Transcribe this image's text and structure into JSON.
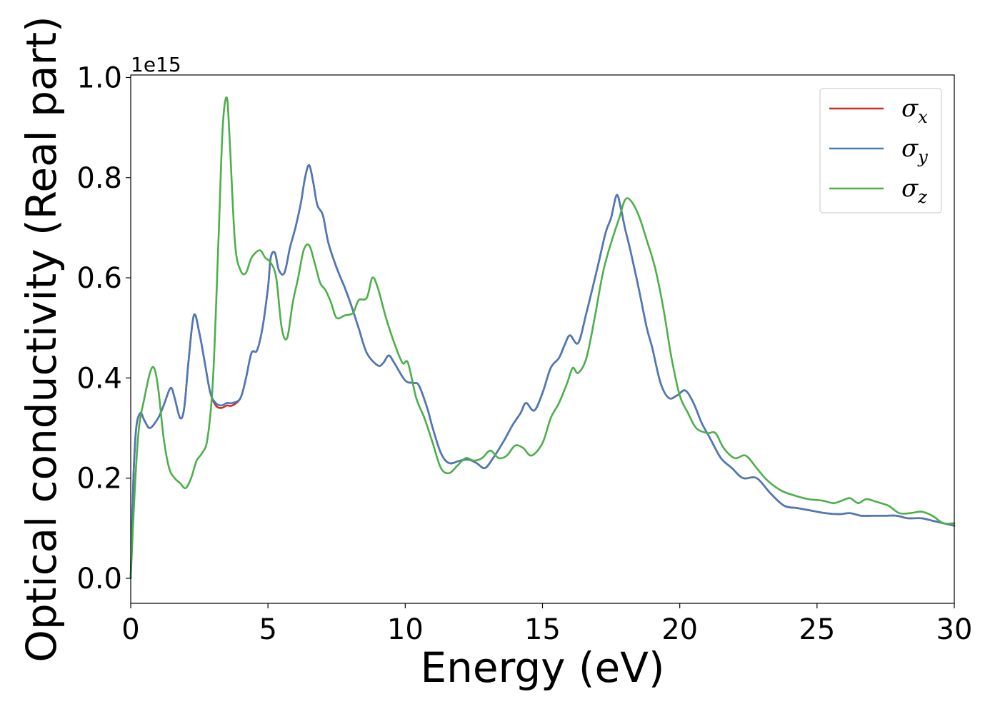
{
  "chart_data": {
    "type": "line",
    "xlabel": "Energy (eV)",
    "ylabel": "Optical conductivity (Real part)",
    "y_offset_label": "1e15",
    "xlim": [
      0,
      30
    ],
    "ylim": [
      -0.05,
      1.005
    ],
    "xticks": [
      0,
      5,
      10,
      15,
      20,
      25,
      30
    ],
    "xtick_labels": [
      "0",
      "5",
      "10",
      "15",
      "20",
      "25",
      "30"
    ],
    "yticks": [
      0.0,
      0.2,
      0.4,
      0.6,
      0.8,
      1.0
    ],
    "ytick_labels": [
      "0.0",
      "0.2",
      "0.4",
      "0.6",
      "0.8",
      "1.0"
    ],
    "grid": false,
    "legend_position": "top-right",
    "series": [
      {
        "name": "σx",
        "legend_base": "σ",
        "legend_sub": "x",
        "color": "#d62728",
        "x": [
          0,
          0.1,
          0.2,
          0.35,
          0.5,
          0.7,
          1.0,
          1.2,
          1.45,
          1.6,
          1.8,
          1.95,
          2.1,
          2.3,
          2.5,
          2.7,
          2.9,
          3.1,
          3.3,
          3.5,
          3.7,
          4.0,
          4.2,
          4.4,
          4.6,
          4.8,
          5.0,
          5.1,
          5.25,
          5.4,
          5.6,
          5.8,
          6.0,
          6.2,
          6.35,
          6.5,
          6.65,
          6.8,
          7.0,
          7.2,
          7.5,
          7.8,
          8.0,
          8.3,
          8.6,
          9.0,
          9.2,
          9.4,
          9.6,
          10.0,
          10.3,
          10.5,
          10.8,
          11.0,
          11.3,
          11.6,
          12.0,
          12.3,
          12.6,
          12.9,
          13.2,
          13.6,
          13.9,
          14.2,
          14.4,
          14.7,
          15.0,
          15.3,
          15.6,
          15.8,
          16.0,
          16.3,
          16.6,
          17.0,
          17.3,
          17.5,
          17.7,
          17.85,
          18.0,
          18.2,
          18.5,
          18.8,
          19.0,
          19.3,
          19.6,
          19.9,
          20.2,
          20.5,
          20.8,
          21.1,
          21.5,
          21.9,
          22.3,
          22.8,
          23.3,
          23.8,
          24.3,
          24.8,
          25.3,
          25.8,
          26.2,
          26.6,
          27.0,
          27.5,
          27.9,
          28.3,
          28.8,
          29.2,
          29.6,
          30.0
        ],
        "y": [
          0.0,
          0.2,
          0.3,
          0.33,
          0.315,
          0.3,
          0.32,
          0.345,
          0.38,
          0.36,
          0.32,
          0.34,
          0.43,
          0.525,
          0.49,
          0.43,
          0.37,
          0.345,
          0.34,
          0.345,
          0.345,
          0.36,
          0.4,
          0.45,
          0.455,
          0.5,
          0.58,
          0.64,
          0.65,
          0.615,
          0.61,
          0.66,
          0.7,
          0.75,
          0.8,
          0.825,
          0.79,
          0.745,
          0.725,
          0.67,
          0.62,
          0.58,
          0.55,
          0.5,
          0.45,
          0.425,
          0.43,
          0.445,
          0.43,
          0.395,
          0.39,
          0.385,
          0.34,
          0.3,
          0.25,
          0.23,
          0.235,
          0.237,
          0.23,
          0.22,
          0.24,
          0.275,
          0.305,
          0.33,
          0.35,
          0.335,
          0.37,
          0.42,
          0.44,
          0.465,
          0.485,
          0.47,
          0.53,
          0.62,
          0.69,
          0.72,
          0.765,
          0.74,
          0.7,
          0.655,
          0.58,
          0.5,
          0.46,
          0.39,
          0.36,
          0.365,
          0.375,
          0.35,
          0.31,
          0.28,
          0.24,
          0.22,
          0.2,
          0.2,
          0.17,
          0.145,
          0.14,
          0.135,
          0.13,
          0.128,
          0.13,
          0.125,
          0.125,
          0.125,
          0.125,
          0.12,
          0.12,
          0.115,
          0.11,
          0.105
        ]
      },
      {
        "name": "σy",
        "legend_base": "σ",
        "legend_sub": "y",
        "color": "#4a7ab8",
        "x": [
          0,
          0.1,
          0.2,
          0.35,
          0.5,
          0.7,
          1.0,
          1.2,
          1.45,
          1.6,
          1.8,
          1.95,
          2.1,
          2.3,
          2.5,
          2.7,
          2.9,
          3.1,
          3.3,
          3.5,
          3.7,
          4.0,
          4.2,
          4.4,
          4.6,
          4.8,
          5.0,
          5.1,
          5.25,
          5.4,
          5.6,
          5.8,
          6.0,
          6.2,
          6.35,
          6.5,
          6.65,
          6.8,
          7.0,
          7.2,
          7.5,
          7.8,
          8.0,
          8.3,
          8.6,
          9.0,
          9.2,
          9.4,
          9.6,
          10.0,
          10.3,
          10.5,
          10.8,
          11.0,
          11.3,
          11.6,
          12.0,
          12.3,
          12.6,
          12.9,
          13.2,
          13.6,
          13.9,
          14.2,
          14.4,
          14.7,
          15.0,
          15.3,
          15.6,
          15.8,
          16.0,
          16.3,
          16.6,
          17.0,
          17.3,
          17.5,
          17.7,
          17.85,
          18.0,
          18.2,
          18.5,
          18.8,
          19.0,
          19.3,
          19.6,
          19.9,
          20.2,
          20.5,
          20.8,
          21.1,
          21.5,
          21.9,
          22.3,
          22.8,
          23.3,
          23.8,
          24.3,
          24.8,
          25.3,
          25.8,
          26.2,
          26.6,
          27.0,
          27.5,
          27.9,
          28.3,
          28.8,
          29.2,
          29.6,
          30.0
        ],
        "y": [
          0.0,
          0.2,
          0.3,
          0.33,
          0.315,
          0.3,
          0.32,
          0.345,
          0.38,
          0.36,
          0.32,
          0.34,
          0.43,
          0.525,
          0.49,
          0.43,
          0.37,
          0.35,
          0.345,
          0.35,
          0.35,
          0.36,
          0.4,
          0.45,
          0.455,
          0.5,
          0.58,
          0.64,
          0.65,
          0.615,
          0.61,
          0.66,
          0.7,
          0.75,
          0.8,
          0.825,
          0.79,
          0.745,
          0.725,
          0.67,
          0.62,
          0.58,
          0.55,
          0.5,
          0.45,
          0.425,
          0.43,
          0.445,
          0.43,
          0.395,
          0.39,
          0.385,
          0.34,
          0.3,
          0.25,
          0.23,
          0.235,
          0.237,
          0.23,
          0.22,
          0.24,
          0.275,
          0.305,
          0.33,
          0.35,
          0.335,
          0.37,
          0.42,
          0.44,
          0.465,
          0.485,
          0.47,
          0.53,
          0.62,
          0.69,
          0.72,
          0.765,
          0.74,
          0.7,
          0.655,
          0.58,
          0.5,
          0.46,
          0.39,
          0.36,
          0.365,
          0.375,
          0.35,
          0.31,
          0.28,
          0.24,
          0.22,
          0.2,
          0.2,
          0.17,
          0.145,
          0.14,
          0.135,
          0.13,
          0.128,
          0.13,
          0.125,
          0.125,
          0.125,
          0.125,
          0.12,
          0.12,
          0.115,
          0.11,
          0.105
        ]
      },
      {
        "name": "σz",
        "legend_base": "σ",
        "legend_sub": "z",
        "color": "#4daf4a",
        "x": [
          0,
          0.15,
          0.3,
          0.5,
          0.7,
          0.85,
          1.0,
          1.2,
          1.4,
          1.6,
          1.8,
          2.0,
          2.2,
          2.4,
          2.6,
          2.8,
          3.0,
          3.2,
          3.35,
          3.5,
          3.6,
          3.8,
          4.0,
          4.2,
          4.4,
          4.7,
          4.9,
          5.1,
          5.3,
          5.5,
          5.7,
          5.9,
          6.1,
          6.3,
          6.5,
          6.7,
          6.9,
          7.1,
          7.3,
          7.5,
          7.8,
          8.1,
          8.3,
          8.6,
          8.8,
          9.0,
          9.3,
          9.6,
          9.9,
          10.1,
          10.4,
          10.7,
          11.0,
          11.3,
          11.6,
          11.9,
          12.2,
          12.5,
          12.8,
          13.1,
          13.4,
          13.7,
          14.0,
          14.3,
          14.6,
          15.0,
          15.3,
          15.6,
          15.9,
          16.1,
          16.3,
          16.6,
          16.9,
          17.2,
          17.5,
          17.8,
          18.0,
          18.2,
          18.5,
          18.8,
          19.1,
          19.4,
          19.7,
          20.0,
          20.3,
          20.6,
          21.0,
          21.3,
          21.6,
          22.0,
          22.4,
          22.8,
          23.2,
          23.7,
          24.2,
          24.7,
          25.2,
          25.6,
          25.9,
          26.2,
          26.5,
          26.8,
          27.2,
          27.6,
          28.0,
          28.4,
          28.8,
          29.2,
          29.6,
          30.0
        ],
        "y": [
          0.0,
          0.18,
          0.3,
          0.36,
          0.41,
          0.42,
          0.38,
          0.28,
          0.22,
          0.2,
          0.19,
          0.18,
          0.2,
          0.235,
          0.25,
          0.28,
          0.4,
          0.68,
          0.9,
          0.96,
          0.88,
          0.67,
          0.615,
          0.61,
          0.64,
          0.655,
          0.64,
          0.63,
          0.6,
          0.5,
          0.48,
          0.55,
          0.6,
          0.655,
          0.665,
          0.63,
          0.59,
          0.575,
          0.55,
          0.52,
          0.525,
          0.53,
          0.555,
          0.56,
          0.6,
          0.58,
          0.52,
          0.47,
          0.43,
          0.43,
          0.36,
          0.32,
          0.27,
          0.22,
          0.21,
          0.225,
          0.24,
          0.235,
          0.24,
          0.255,
          0.24,
          0.245,
          0.265,
          0.26,
          0.245,
          0.27,
          0.32,
          0.35,
          0.39,
          0.42,
          0.41,
          0.44,
          0.52,
          0.61,
          0.67,
          0.72,
          0.755,
          0.755,
          0.725,
          0.675,
          0.62,
          0.54,
          0.44,
          0.365,
          0.33,
          0.3,
          0.29,
          0.29,
          0.26,
          0.24,
          0.245,
          0.22,
          0.195,
          0.175,
          0.165,
          0.158,
          0.155,
          0.15,
          0.155,
          0.16,
          0.15,
          0.158,
          0.152,
          0.145,
          0.13,
          0.13,
          0.133,
          0.125,
          0.11,
          0.11
        ]
      }
    ]
  }
}
